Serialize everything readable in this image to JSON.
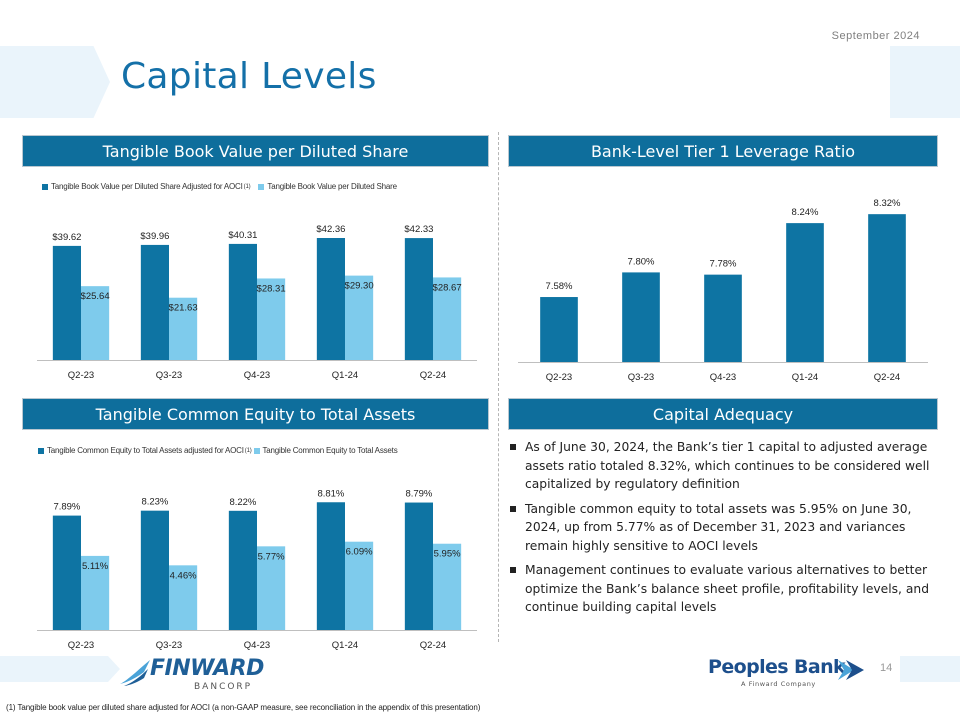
{
  "header": {
    "date": "September  2024",
    "title": "Capital Levels"
  },
  "colors": {
    "dark_blue": "#0e74a3",
    "light_blue": "#7ecbec",
    "section_bar": "#0e6e9c",
    "title_blue": "#1470a8"
  },
  "sections": {
    "tbv": "Tangible Book Value per Diluted Share",
    "tier1": "Bank-Level Tier 1 Leverage Ratio",
    "tce": "Tangible Common Equity to Total Assets",
    "adequacy": "Capital Adequacy"
  },
  "legends": {
    "tbv_series1": "Tangible Book Value per Diluted Share Adjusted for AOCI",
    "tbv_series1_note": "(1)",
    "tbv_series2": "Tangible Book Value per Diluted Share",
    "tce_series1": "Tangible Common Equity to Total Assets adjusted for AOCI",
    "tce_series1_note": "(1)",
    "tce_series2": "Tangible Common Equity to Total Assets"
  },
  "chart_data": [
    {
      "id": "tbv",
      "type": "bar",
      "title": "Tangible Book Value per Diluted Share",
      "categories": [
        "Q2-23",
        "Q3-23",
        "Q4-23",
        "Q1-24",
        "Q2-24"
      ],
      "series": [
        {
          "name": "Tangible Book Value per Diluted Share Adjusted for AOCI",
          "values": [
            39.62,
            39.96,
            40.31,
            42.36,
            42.33
          ],
          "labels": [
            "$39.62",
            "$39.96",
            "$40.31",
            "$42.36",
            "$42.33"
          ]
        },
        {
          "name": "Tangible Book Value per Diluted Share",
          "values": [
            25.64,
            21.63,
            28.31,
            29.3,
            28.67
          ],
          "labels": [
            "$25.64",
            "$21.63",
            "$28.31",
            "$29.30",
            "$28.67"
          ]
        }
      ],
      "ylim": [
        0,
        50
      ],
      "legend": "top",
      "grid": false
    },
    {
      "id": "tier1",
      "type": "bar",
      "title": "Bank-Level Tier 1 Leverage Ratio",
      "categories": [
        "Q2-23",
        "Q3-23",
        "Q4-23",
        "Q1-24",
        "Q2-24"
      ],
      "series": [
        {
          "name": "Bank-Level Tier 1 Leverage Ratio",
          "values": [
            7.58,
            7.8,
            7.78,
            8.24,
            8.32
          ],
          "labels": [
            "7.58%",
            "7.80%",
            "7.78%",
            "8.24%",
            "8.32%"
          ]
        }
      ],
      "ylim": [
        7.0,
        8.5
      ],
      "legend": "none",
      "grid": false
    },
    {
      "id": "tce",
      "type": "bar",
      "title": "Tangible Common Equity to Total Assets",
      "categories": [
        "Q2-23",
        "Q3-23",
        "Q4-23",
        "Q1-24",
        "Q2-24"
      ],
      "series": [
        {
          "name": "Tangible Common Equity to Total Assets adjusted for AOCI",
          "values": [
            7.89,
            8.23,
            8.22,
            8.81,
            8.79
          ],
          "labels": [
            "7.89%",
            "8.23%",
            "8.22%",
            "8.81%",
            "8.79%"
          ]
        },
        {
          "name": "Tangible Common Equity to Total Assets",
          "values": [
            5.11,
            4.46,
            5.77,
            6.09,
            5.95
          ],
          "labels": [
            "5.11%",
            "4.46%",
            "5.77%",
            "6.09%",
            "5.95%"
          ]
        }
      ],
      "ylim": [
        0,
        10
      ],
      "legend": "top",
      "grid": false
    }
  ],
  "adequacy_bullets": [
    "As of June 30, 2024, the Bank’s tier 1 capital to adjusted average assets ratio totaled 8.32%, which continues to be considered well capitalized by regulatory definition",
    "Tangible common equity to total assets was 5.95% on June 30, 2024, up from 5.77% as of December 31, 2023 and variances remain highly sensitive to AOCI levels",
    "Management continues to evaluate various alternatives to better optimize the Bank’s balance sheet profile, profitability levels, and continue building capital levels"
  ],
  "footer": {
    "finward_name": "FINWARD",
    "finward_sub": "BANCORP",
    "peoples_name": "Peoples Bank",
    "peoples_sub": "A Finward Company",
    "page_number": "14",
    "footnote": "(1) Tangible book value per diluted share adjusted for AOCI (a non-GAAP measure, see reconciliation in the appendix of this presentation)"
  }
}
